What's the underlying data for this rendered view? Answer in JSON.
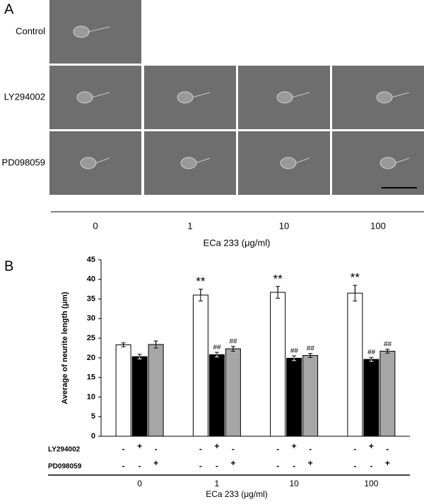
{
  "panel_a": {
    "label": "A",
    "rows": [
      "Control",
      "LY294002",
      "PD098059"
    ],
    "columns": [
      "0",
      "1",
      "10",
      "100"
    ],
    "xlabel": "ECa 233 (μg/ml)"
  },
  "chart_data": {
    "type": "bar",
    "label": "B",
    "ylabel": "Average of neurite length (μm)",
    "xlabel": "ECa 233 (μg/ml)",
    "categories": [
      "0",
      "1",
      "10",
      "100"
    ],
    "ylim": [
      0,
      45
    ],
    "yticks": [
      0,
      5,
      10,
      15,
      20,
      25,
      30,
      35,
      40,
      45
    ],
    "series": [
      {
        "color": "#ffffff",
        "values": [
          23.3,
          36.0,
          36.7,
          36.5
        ],
        "errors": [
          0.5,
          1.5,
          1.5,
          2.0
        ],
        "annotations": [
          null,
          "**",
          "**",
          "**"
        ]
      },
      {
        "color": "#000000",
        "values": [
          20.3,
          20.8,
          19.9,
          19.6
        ],
        "errors": [
          0.6,
          0.6,
          0.6,
          0.5
        ],
        "annotations": [
          null,
          "##",
          "##",
          "##"
        ]
      },
      {
        "color": "#a6a6a6",
        "values": [
          23.4,
          22.3,
          20.6,
          21.7
        ],
        "errors": [
          0.9,
          0.6,
          0.5,
          0.5
        ],
        "annotations": [
          null,
          "##",
          "##",
          "##"
        ]
      }
    ],
    "treatments": [
      {
        "label": "LY294002",
        "signs": [
          "-",
          "+",
          "-",
          "-",
          "+",
          "-",
          "-",
          "+",
          "-",
          "-",
          "+",
          "-"
        ]
      },
      {
        "label": "PD098059",
        "signs": [
          "-",
          "-",
          "+",
          "-",
          "-",
          "+",
          "-",
          "-",
          "+",
          "-",
          "-",
          "+"
        ]
      }
    ]
  }
}
